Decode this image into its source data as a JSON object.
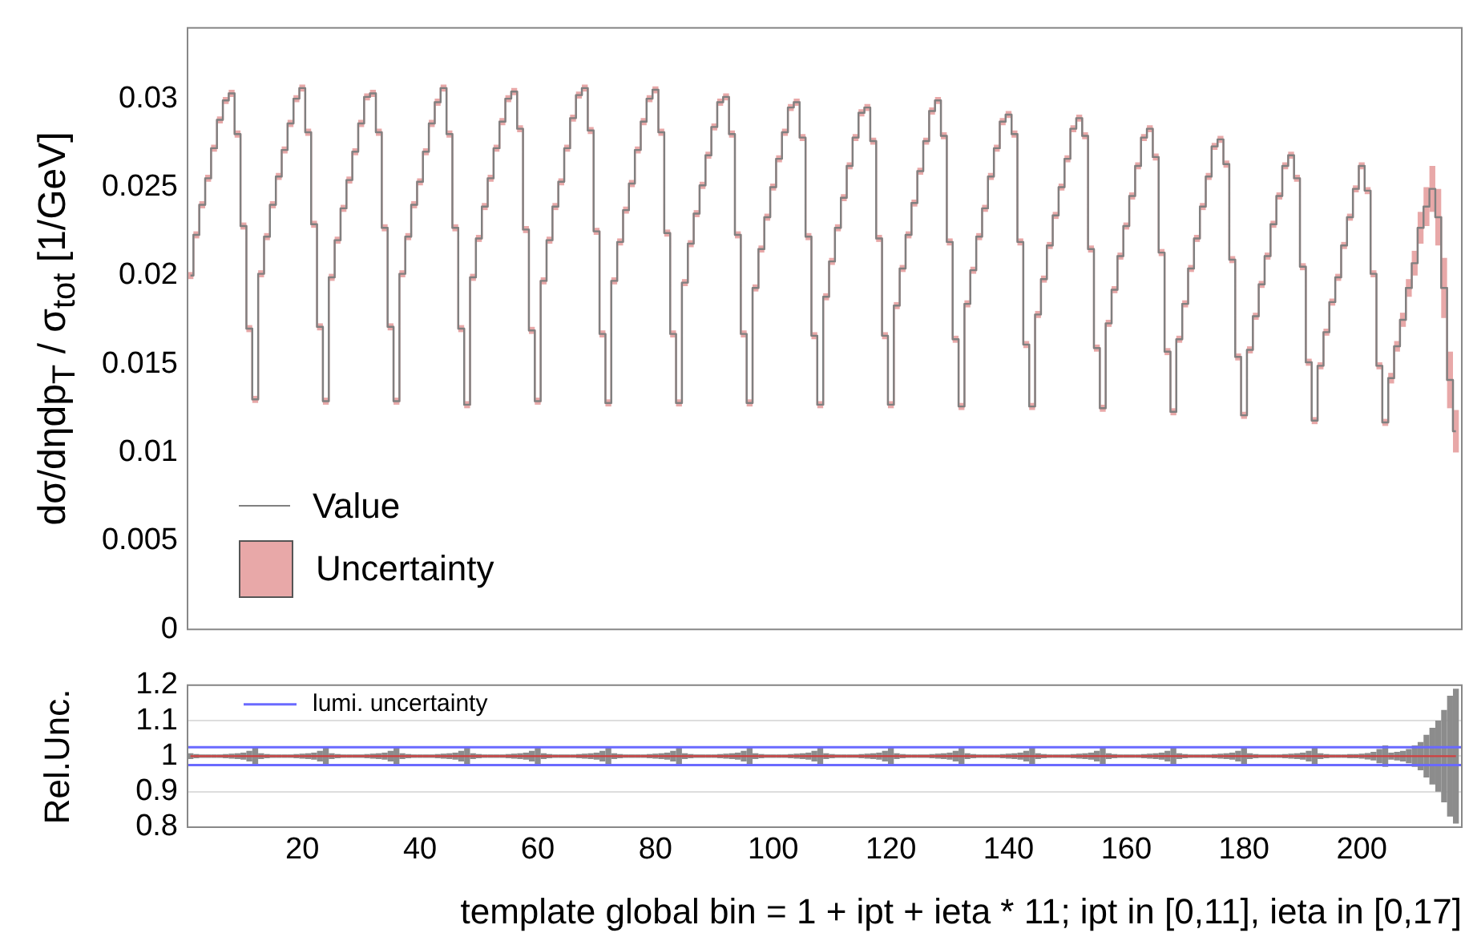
{
  "chart_data": [
    {
      "type": "step",
      "ylabel": "dσ/dηdp$_{T}$ / σ$_{tot}$ [1/GeV]",
      "xlim": [
        0.5,
        217
      ],
      "xticks": [
        20,
        40,
        60,
        80,
        100,
        120,
        140,
        160,
        180,
        200
      ],
      "ylim": [
        0,
        0.034
      ],
      "yticks": [
        0,
        0.005,
        0.01,
        0.015,
        0.02,
        0.025,
        0.03
      ],
      "tick_labels": "y",
      "legend": "bottom left",
      "x": [
        1,
        2,
        3,
        4,
        5,
        6,
        7,
        8,
        9,
        10,
        11,
        12,
        13,
        14,
        15,
        16,
        17,
        18,
        19,
        20,
        21,
        22,
        23,
        24,
        25,
        26,
        27,
        28,
        29,
        30,
        31,
        32,
        33,
        34,
        35,
        36,
        37,
        38,
        39,
        40,
        41,
        42,
        43,
        44,
        45,
        46,
        47,
        48,
        49,
        50,
        51,
        52,
        53,
        54,
        55,
        56,
        57,
        58,
        59,
        60,
        61,
        62,
        63,
        64,
        65,
        66,
        67,
        68,
        69,
        70,
        71,
        72,
        73,
        74,
        75,
        76,
        77,
        78,
        79,
        80,
        81,
        82,
        83,
        84,
        85,
        86,
        87,
        88,
        89,
        90,
        91,
        92,
        93,
        94,
        95,
        96,
        97,
        98,
        99,
        100,
        101,
        102,
        103,
        104,
        105,
        106,
        107,
        108,
        109,
        110,
        111,
        112,
        113,
        114,
        115,
        116,
        117,
        118,
        119,
        120,
        121,
        122,
        123,
        124,
        125,
        126,
        127,
        128,
        129,
        130,
        131,
        132,
        133,
        134,
        135,
        136,
        137,
        138,
        139,
        140,
        141,
        142,
        143,
        144,
        145,
        146,
        147,
        148,
        149,
        150,
        151,
        152,
        153,
        154,
        155,
        156,
        157,
        158,
        159,
        160,
        161,
        162,
        163,
        164,
        165,
        166,
        167,
        168,
        169,
        170,
        171,
        172,
        173,
        174,
        175,
        176,
        177,
        178,
        179,
        180,
        181,
        182,
        183,
        184,
        185,
        186,
        187,
        188,
        189,
        190,
        191,
        192,
        193,
        194,
        195,
        196,
        197,
        198,
        199,
        200,
        201,
        202,
        203,
        204,
        205,
        206,
        207,
        208,
        209,
        210,
        211,
        212,
        213,
        214,
        215,
        216
      ],
      "series": [
        {
          "name": "Uncertainty",
          "color": "#e8a8a8",
          "values": [
            0.02,
            0.0223,
            0.024,
            0.0255,
            0.0272,
            0.0288,
            0.0299,
            0.0303,
            0.028,
            0.0228,
            0.017,
            0.013,
            0.0201,
            0.0222,
            0.024,
            0.0256,
            0.0271,
            0.0286,
            0.03,
            0.0306,
            0.0281,
            0.0229,
            0.0171,
            0.0129,
            0.0199,
            0.022,
            0.0238,
            0.0254,
            0.027,
            0.0286,
            0.0301,
            0.0303,
            0.0281,
            0.0227,
            0.0171,
            0.0129,
            0.0201,
            0.0222,
            0.024,
            0.0253,
            0.027,
            0.0286,
            0.0298,
            0.0306,
            0.028,
            0.0227,
            0.017,
            0.0127,
            0.0199,
            0.0221,
            0.0239,
            0.0255,
            0.0272,
            0.0287,
            0.03,
            0.0304,
            0.0283,
            0.0226,
            0.0169,
            0.0129,
            0.0197,
            0.022,
            0.0239,
            0.0253,
            0.0272,
            0.0289,
            0.0302,
            0.0306,
            0.0282,
            0.0225,
            0.0167,
            0.0128,
            0.0197,
            0.0219,
            0.0237,
            0.0252,
            0.0271,
            0.0287,
            0.03,
            0.0305,
            0.0281,
            0.0224,
            0.0167,
            0.0128,
            0.0196,
            0.0218,
            0.0235,
            0.0251,
            0.0268,
            0.0284,
            0.0298,
            0.0301,
            0.028,
            0.0223,
            0.0167,
            0.0128,
            0.0193,
            0.0215,
            0.0233,
            0.025,
            0.0266,
            0.0281,
            0.0295,
            0.0298,
            0.0278,
            0.0222,
            0.0166,
            0.0127,
            0.0188,
            0.0208,
            0.0227,
            0.0244,
            0.0262,
            0.0278,
            0.0292,
            0.0295,
            0.0276,
            0.0221,
            0.0166,
            0.0127,
            0.0183,
            0.0204,
            0.0223,
            0.0241,
            0.0259,
            0.0276,
            0.0293,
            0.0299,
            0.0279,
            0.0219,
            0.0164,
            0.0126,
            0.0184,
            0.0203,
            0.0222,
            0.0238,
            0.0256,
            0.0272,
            0.0287,
            0.0291,
            0.028,
            0.0219,
            0.0161,
            0.0126,
            0.0178,
            0.0198,
            0.0217,
            0.0234,
            0.025,
            0.0266,
            0.0283,
            0.0289,
            0.0279,
            0.0215,
            0.0159,
            0.0125,
            0.0173,
            0.0192,
            0.0211,
            0.0228,
            0.0245,
            0.0262,
            0.0278,
            0.0283,
            0.0267,
            0.0213,
            0.0157,
            0.0123,
            0.0164,
            0.0184,
            0.0204,
            0.0221,
            0.0239,
            0.0256,
            0.0273,
            0.0277,
            0.0263,
            0.0209,
            0.0154,
            0.0121,
            0.0158,
            0.0177,
            0.0195,
            0.0211,
            0.0229,
            0.0245,
            0.0262,
            0.0268,
            0.0255,
            0.0205,
            0.0151,
            0.0118,
            0.0149,
            0.0168,
            0.0185,
            0.0199,
            0.0217,
            0.0233,
            0.0249,
            0.0262,
            0.0248,
            0.0201,
            0.0149,
            0.0117,
            0.0142,
            0.016,
            0.0175,
            0.0193,
            0.0207,
            0.0227,
            0.0239,
            0.0249,
            0.0233,
            0.0193,
            0.0141,
            0.0112
          ],
          "errors": [
            0.0002,
            0.0002,
            0.0002,
            0.0002,
            0.0002,
            0.0002,
            0.0002,
            0.0002,
            0.0002,
            0.0002,
            0.0002,
            0.0002,
            0.0002,
            0.0002,
            0.0002,
            0.0002,
            0.0002,
            0.0002,
            0.0002,
            0.0002,
            0.0002,
            0.0002,
            0.0002,
            0.0002,
            0.0002,
            0.0002,
            0.0002,
            0.0002,
            0.0002,
            0.0002,
            0.0002,
            0.0002,
            0.0002,
            0.0002,
            0.0002,
            0.0002,
            0.0002,
            0.0002,
            0.0002,
            0.0002,
            0.0002,
            0.0002,
            0.0002,
            0.0002,
            0.0002,
            0.0002,
            0.0002,
            0.0002,
            0.0002,
            0.0002,
            0.0002,
            0.0002,
            0.0002,
            0.0002,
            0.0002,
            0.0002,
            0.0002,
            0.0002,
            0.0002,
            0.0002,
            0.0002,
            0.0002,
            0.0002,
            0.0002,
            0.0002,
            0.0002,
            0.0002,
            0.0002,
            0.0002,
            0.0002,
            0.0002,
            0.0002,
            0.0002,
            0.0002,
            0.0002,
            0.0002,
            0.0002,
            0.0002,
            0.0002,
            0.0002,
            0.0002,
            0.0002,
            0.0002,
            0.0002,
            0.0002,
            0.0002,
            0.0002,
            0.0002,
            0.0002,
            0.0002,
            0.0002,
            0.0002,
            0.0002,
            0.0002,
            0.0002,
            0.0002,
            0.0002,
            0.0002,
            0.0002,
            0.0002,
            0.0002,
            0.0002,
            0.0002,
            0.0002,
            0.0002,
            0.0002,
            0.0002,
            0.0002,
            0.0002,
            0.0002,
            0.0002,
            0.0002,
            0.0002,
            0.0002,
            0.0002,
            0.0002,
            0.0002,
            0.0002,
            0.0002,
            0.0002,
            0.0002,
            0.0002,
            0.0002,
            0.0002,
            0.0002,
            0.0002,
            0.0002,
            0.0002,
            0.0002,
            0.0002,
            0.0002,
            0.0002,
            0.0002,
            0.0002,
            0.0002,
            0.0002,
            0.0002,
            0.0002,
            0.0002,
            0.0002,
            0.0002,
            0.0002,
            0.0002,
            0.0002,
            0.0002,
            0.0002,
            0.0002,
            0.0002,
            0.0002,
            0.0002,
            0.0002,
            0.0002,
            0.0002,
            0.0002,
            0.0002,
            0.0002,
            0.0002,
            0.0002,
            0.0002,
            0.0002,
            0.0002,
            0.0002,
            0.0002,
            0.0002,
            0.0002,
            0.0002,
            0.0002,
            0.0002,
            0.0002,
            0.0002,
            0.0002,
            0.0002,
            0.0002,
            0.0002,
            0.0002,
            0.0002,
            0.0002,
            0.0002,
            0.0002,
            0.0002,
            0.0002,
            0.0002,
            0.0002,
            0.0002,
            0.0002,
            0.0002,
            0.0002,
            0.0002,
            0.0002,
            0.0002,
            0.0002,
            0.0002,
            0.0002,
            0.0002,
            0.0002,
            0.0002,
            0.0002,
            0.0002,
            0.0002,
            0.0002,
            0.0002,
            0.0002,
            0.0002,
            0.0002,
            0.0003,
            0.0003,
            0.0004,
            0.0005,
            0.0007,
            0.0009,
            0.0011,
            0.0013,
            0.0016,
            0.0017,
            0.0016,
            0.0012
          ]
        },
        {
          "name": "Value",
          "color": "#808080",
          "values": [
            0.02,
            0.0223,
            0.024,
            0.0255,
            0.0272,
            0.0288,
            0.0299,
            0.0303,
            0.028,
            0.0228,
            0.017,
            0.013,
            0.0201,
            0.0222,
            0.024,
            0.0256,
            0.0271,
            0.0286,
            0.03,
            0.0306,
            0.0281,
            0.0229,
            0.0171,
            0.0129,
            0.0199,
            0.022,
            0.0238,
            0.0254,
            0.027,
            0.0286,
            0.0301,
            0.0303,
            0.0281,
            0.0227,
            0.0171,
            0.0129,
            0.0201,
            0.0222,
            0.024,
            0.0253,
            0.027,
            0.0286,
            0.0298,
            0.0306,
            0.028,
            0.0227,
            0.017,
            0.0127,
            0.0199,
            0.0221,
            0.0239,
            0.0255,
            0.0272,
            0.0287,
            0.03,
            0.0304,
            0.0283,
            0.0226,
            0.0169,
            0.0129,
            0.0197,
            0.022,
            0.0239,
            0.0253,
            0.0272,
            0.0289,
            0.0302,
            0.0306,
            0.0282,
            0.0225,
            0.0167,
            0.0128,
            0.0197,
            0.0219,
            0.0237,
            0.0252,
            0.0271,
            0.0287,
            0.03,
            0.0305,
            0.0281,
            0.0224,
            0.0167,
            0.0128,
            0.0196,
            0.0218,
            0.0235,
            0.0251,
            0.0268,
            0.0284,
            0.0298,
            0.0301,
            0.028,
            0.0223,
            0.0167,
            0.0128,
            0.0193,
            0.0215,
            0.0233,
            0.025,
            0.0266,
            0.0281,
            0.0295,
            0.0298,
            0.0278,
            0.0222,
            0.0166,
            0.0127,
            0.0188,
            0.0208,
            0.0227,
            0.0244,
            0.0262,
            0.0278,
            0.0292,
            0.0295,
            0.0276,
            0.0221,
            0.0166,
            0.0127,
            0.0183,
            0.0204,
            0.0223,
            0.0241,
            0.0259,
            0.0276,
            0.0293,
            0.0299,
            0.0279,
            0.0219,
            0.0164,
            0.0126,
            0.0184,
            0.0203,
            0.0222,
            0.0238,
            0.0256,
            0.0272,
            0.0287,
            0.0291,
            0.028,
            0.0219,
            0.0161,
            0.0126,
            0.0178,
            0.0198,
            0.0217,
            0.0234,
            0.025,
            0.0266,
            0.0283,
            0.0289,
            0.0279,
            0.0215,
            0.0159,
            0.0125,
            0.0173,
            0.0192,
            0.0211,
            0.0228,
            0.0245,
            0.0262,
            0.0278,
            0.0283,
            0.0267,
            0.0213,
            0.0157,
            0.0123,
            0.0164,
            0.0184,
            0.0204,
            0.0221,
            0.0239,
            0.0256,
            0.0273,
            0.0277,
            0.0263,
            0.0209,
            0.0154,
            0.0121,
            0.0158,
            0.0177,
            0.0195,
            0.0211,
            0.0229,
            0.0245,
            0.0262,
            0.0268,
            0.0255,
            0.0205,
            0.0151,
            0.0118,
            0.0149,
            0.0168,
            0.0185,
            0.0199,
            0.0217,
            0.0233,
            0.0249,
            0.0262,
            0.0248,
            0.0201,
            0.0149,
            0.0117,
            0.0142,
            0.016,
            0.0175,
            0.0193,
            0.0207,
            0.0227,
            0.0239,
            0.0249,
            0.0233,
            0.0193,
            0.0141,
            0.0112
          ]
        }
      ]
    },
    {
      "type": "step",
      "xlabel": "template global bin = 1 + ipt + ieta * 11; ipt in [0,11], ieta in [0,17]",
      "ylabel": "Rel.Unc.",
      "xlim": [
        0.5,
        217
      ],
      "xticks": [
        20,
        40,
        60,
        80,
        100,
        120,
        140,
        160,
        180,
        200
      ],
      "ylim": [
        0.8,
        1.2
      ],
      "yticks": [
        0.8,
        0.9,
        1,
        1.1,
        1.2
      ],
      "grid": "y",
      "color": "#d04040",
      "x": [
        1,
        2,
        3,
        4,
        5,
        6,
        7,
        8,
        9,
        10,
        11,
        12,
        13,
        14,
        15,
        16,
        17,
        18,
        19,
        20,
        21,
        22,
        23,
        24,
        25,
        26,
        27,
        28,
        29,
        30,
        31,
        32,
        33,
        34,
        35,
        36,
        37,
        38,
        39,
        40,
        41,
        42,
        43,
        44,
        45,
        46,
        47,
        48,
        49,
        50,
        51,
        52,
        53,
        54,
        55,
        56,
        57,
        58,
        59,
        60,
        61,
        62,
        63,
        64,
        65,
        66,
        67,
        68,
        69,
        70,
        71,
        72,
        73,
        74,
        75,
        76,
        77,
        78,
        79,
        80,
        81,
        82,
        83,
        84,
        85,
        86,
        87,
        88,
        89,
        90,
        91,
        92,
        93,
        94,
        95,
        96,
        97,
        98,
        99,
        100,
        101,
        102,
        103,
        104,
        105,
        106,
        107,
        108,
        109,
        110,
        111,
        112,
        113,
        114,
        115,
        116,
        117,
        118,
        119,
        120,
        121,
        122,
        123,
        124,
        125,
        126,
        127,
        128,
        129,
        130,
        131,
        132,
        133,
        134,
        135,
        136,
        137,
        138,
        139,
        140,
        141,
        142,
        143,
        144,
        145,
        146,
        147,
        148,
        149,
        150,
        151,
        152,
        153,
        154,
        155,
        156,
        157,
        158,
        159,
        160,
        161,
        162,
        163,
        164,
        165,
        166,
        167,
        168,
        169,
        170,
        171,
        172,
        173,
        174,
        175,
        176,
        177,
        178,
        179,
        180,
        181,
        182,
        183,
        184,
        185,
        186,
        187,
        188,
        189,
        190,
        191,
        192,
        193,
        194,
        195,
        196,
        197,
        198,
        199,
        200,
        201,
        202,
        203,
        204,
        205,
        206,
        207,
        208,
        209,
        210,
        211,
        212,
        213,
        214,
        215,
        216
      ],
      "values": [
        1,
        1,
        1,
        1,
        1,
        1,
        1,
        1,
        1,
        1,
        1,
        1,
        1,
        1,
        1,
        1,
        1,
        1,
        1,
        1,
        1,
        1,
        1,
        1,
        1,
        1,
        1,
        1,
        1,
        1,
        1,
        1,
        1,
        1,
        1,
        1,
        1,
        1,
        1,
        1,
        1,
        1,
        1,
        1,
        1,
        1,
        1,
        1,
        1,
        1,
        1,
        1,
        1,
        1,
        1,
        1,
        1,
        1,
        1,
        1,
        1,
        1,
        1,
        1,
        1,
        1,
        1,
        1,
        1,
        1,
        1,
        1,
        1,
        1,
        1,
        1,
        1,
        1,
        1,
        1,
        1,
        1,
        1,
        1,
        1,
        1,
        1,
        1,
        1,
        1,
        1,
        1,
        1,
        1,
        1,
        1,
        1,
        1,
        1,
        1,
        1,
        1,
        1,
        1,
        1,
        1,
        1,
        1,
        1,
        1,
        1,
        1,
        1,
        1,
        1,
        1,
        1,
        1,
        1,
        1,
        1,
        1,
        1,
        1,
        1,
        1,
        1,
        1,
        1,
        1,
        1,
        1,
        1,
        1,
        1,
        1,
        1,
        1,
        1,
        1,
        1,
        1,
        1,
        1,
        1,
        1,
        1,
        1,
        1,
        1,
        1,
        1,
        1,
        1,
        1,
        1,
        1,
        1,
        1,
        1,
        1,
        1,
        1,
        1,
        1,
        1,
        1,
        1,
        1,
        1,
        1,
        1,
        1,
        1,
        1,
        1,
        1,
        1,
        1,
        1,
        1,
        1,
        1,
        1,
        1,
        1,
        1,
        1,
        1,
        1,
        1,
        1,
        1,
        1,
        1,
        1,
        1,
        1,
        1,
        1,
        1,
        1,
        1,
        1,
        1,
        1,
        1,
        1,
        1,
        1,
        1,
        1,
        1,
        1,
        1,
        1
      ],
      "errors": [
        0.008,
        0.006,
        0.005,
        0.005,
        0.005,
        0.005,
        0.006,
        0.007,
        0.008,
        0.01,
        0.015,
        0.025,
        0.008,
        0.006,
        0.005,
        0.005,
        0.005,
        0.005,
        0.006,
        0.007,
        0.008,
        0.01,
        0.015,
        0.025,
        0.008,
        0.006,
        0.005,
        0.005,
        0.005,
        0.005,
        0.006,
        0.007,
        0.008,
        0.01,
        0.015,
        0.025,
        0.008,
        0.006,
        0.005,
        0.005,
        0.005,
        0.005,
        0.006,
        0.007,
        0.008,
        0.01,
        0.015,
        0.025,
        0.008,
        0.006,
        0.005,
        0.005,
        0.005,
        0.005,
        0.006,
        0.007,
        0.008,
        0.01,
        0.015,
        0.025,
        0.008,
        0.006,
        0.005,
        0.005,
        0.005,
        0.005,
        0.006,
        0.007,
        0.008,
        0.01,
        0.015,
        0.025,
        0.008,
        0.006,
        0.005,
        0.005,
        0.005,
        0.005,
        0.006,
        0.007,
        0.008,
        0.01,
        0.015,
        0.025,
        0.008,
        0.006,
        0.005,
        0.005,
        0.005,
        0.005,
        0.006,
        0.007,
        0.008,
        0.01,
        0.015,
        0.025,
        0.008,
        0.006,
        0.005,
        0.005,
        0.005,
        0.005,
        0.006,
        0.007,
        0.008,
        0.01,
        0.015,
        0.025,
        0.008,
        0.006,
        0.005,
        0.005,
        0.005,
        0.005,
        0.006,
        0.007,
        0.008,
        0.01,
        0.015,
        0.025,
        0.008,
        0.006,
        0.005,
        0.005,
        0.005,
        0.005,
        0.006,
        0.007,
        0.008,
        0.01,
        0.015,
        0.025,
        0.008,
        0.006,
        0.005,
        0.005,
        0.005,
        0.005,
        0.006,
        0.007,
        0.008,
        0.01,
        0.015,
        0.025,
        0.008,
        0.006,
        0.005,
        0.005,
        0.005,
        0.005,
        0.006,
        0.007,
        0.008,
        0.01,
        0.015,
        0.025,
        0.008,
        0.006,
        0.005,
        0.005,
        0.005,
        0.005,
        0.006,
        0.007,
        0.008,
        0.01,
        0.015,
        0.025,
        0.008,
        0.006,
        0.005,
        0.005,
        0.005,
        0.005,
        0.006,
        0.007,
        0.008,
        0.01,
        0.015,
        0.025,
        0.008,
        0.006,
        0.005,
        0.005,
        0.005,
        0.005,
        0.006,
        0.007,
        0.008,
        0.01,
        0.015,
        0.025,
        0.008,
        0.006,
        0.005,
        0.005,
        0.005,
        0.006,
        0.006,
        0.007,
        0.009,
        0.012,
        0.02,
        0.03,
        0.01,
        0.012,
        0.015,
        0.02,
        0.03,
        0.04,
        0.06,
        0.08,
        0.1,
        0.13,
        0.17,
        0.19
      ],
      "ref_lines": [
        {
          "axis": "y",
          "value": 1.025,
          "label": "lumi. uncertainty",
          "color": "#6a6aff"
        },
        {
          "axis": "y",
          "value": 0.975,
          "color": "#6a6aff"
        }
      ]
    }
  ]
}
